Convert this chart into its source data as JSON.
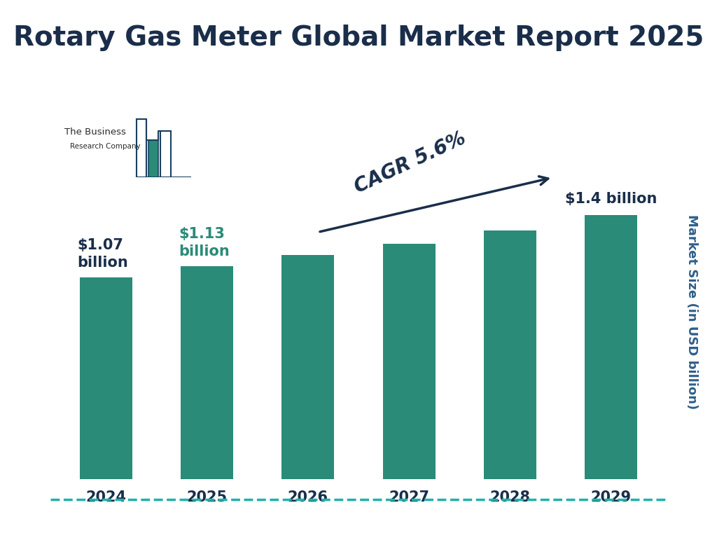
{
  "title": "Rotary Gas Meter Global Market Report 2025",
  "years": [
    "2024",
    "2025",
    "2026",
    "2027",
    "2028",
    "2029"
  ],
  "values": [
    1.07,
    1.13,
    1.19,
    1.25,
    1.32,
    1.4
  ],
  "bar_color": "#2a8b78",
  "background_color": "#ffffff",
  "title_color": "#1a2e4a",
  "label_color_dark": "#1a2e4a",
  "label_color_green": "#2a8b78",
  "ylabel": "Market Size (in USD billion)",
  "ylabel_color": "#2e5f8a",
  "tick_label_color": "#1a2e4a",
  "cagr_text": "CAGR 5.6%",
  "cagr_color": "#1a2e4a",
  "ann_2024_text": "$1.07\nbillion",
  "ann_2024_color": "#1a2e4a",
  "ann_2025_text": "$1.13\nbillion",
  "ann_2025_color": "#2a8b78",
  "ann_2029_text": "$1.4 billion",
  "ann_2029_color": "#1a2e4a",
  "border_color": "#20b2aa",
  "title_fontsize": 28,
  "tick_fontsize": 15,
  "ylabel_fontsize": 13,
  "annotation_fontsize": 15,
  "cagr_fontsize": 20,
  "ylim_max": 2.2
}
